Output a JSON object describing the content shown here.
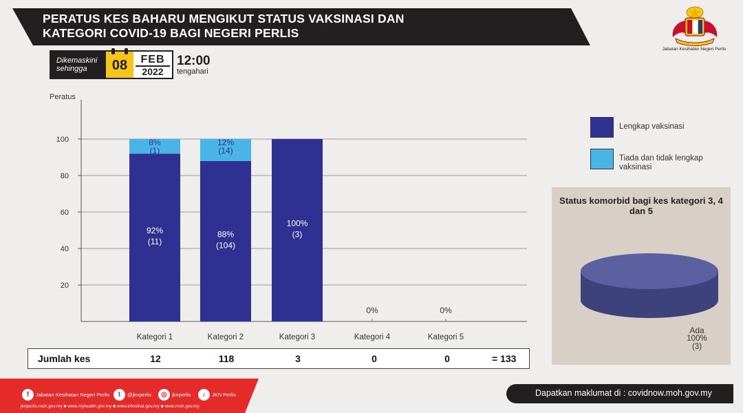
{
  "header": {
    "title_line1": "PERATUS KES BAHARU MENGIKUT STATUS VAKSINASI  DAN",
    "title_line2": "KATEGORI COVID-19 BAGI NEGERI PERLIS"
  },
  "logo": {
    "caption": "Jabatan Kesihatan Negeri Perlis"
  },
  "update": {
    "label_line1": "Dikemaskini",
    "label_line2": "sehingga",
    "day": "08",
    "month": "FEB",
    "year": "2022",
    "time": "12:00",
    "time_suffix": "tengahari"
  },
  "chart_data": {
    "type": "bar",
    "stacked": true,
    "ylabel": "Peratus",
    "ylim": [
      0,
      100
    ],
    "yticks": [
      "20",
      "40",
      "60",
      "80",
      "100"
    ],
    "categories": [
      "Kategori 1",
      "Kategori 2",
      "Kategori 3",
      "Kategori 4",
      "Kategori 5"
    ],
    "series": [
      {
        "name": "Lengkap vaksinasi",
        "color": "#2e3192",
        "values": [
          92,
          88,
          100,
          0,
          0
        ],
        "labels": [
          "92%",
          "88%",
          "100%",
          "",
          ""
        ],
        "counts": [
          "(11)",
          "(104)",
          "(3)",
          "",
          ""
        ]
      },
      {
        "name": "Tiada dan tidak lengkap vaksinasi",
        "color": "#49b4e6",
        "values": [
          8,
          12,
          0,
          0,
          0
        ],
        "labels": [
          "8%",
          "12%",
          "",
          "",
          ""
        ],
        "counts": [
          "(1)",
          "(14)",
          "",
          "",
          ""
        ]
      }
    ],
    "zero_labels": [
      "",
      "",
      "",
      "0%",
      "0%"
    ],
    "grid": true
  },
  "legend": {
    "items": [
      {
        "label": "Lengkap vaksinasi",
        "color": "#2e3192"
      },
      {
        "label": "Tiada dan tidak lengkap vaksinasi",
        "color": "#49b4e6"
      }
    ]
  },
  "totals": {
    "label": "Jumlah kes",
    "values": [
      "12",
      "118",
      "3",
      "0",
      "0"
    ],
    "sum": "= 133"
  },
  "comorbid": {
    "title": "Status komorbid bagi kes kategori 3, 4 dan 5",
    "slices": [
      {
        "name": "Ada",
        "value": 100,
        "label": "100%",
        "count": "(3)",
        "color": "#4a4f8f"
      }
    ]
  },
  "footer": {
    "socials": [
      {
        "icon": "facebook-icon",
        "glyph": "f",
        "text": "Jabatan Kesihatan Negeri Perlis"
      },
      {
        "icon": "twitter-icon",
        "glyph": "t",
        "text": "@jknperlis"
      },
      {
        "icon": "instagram-icon",
        "glyph": "◎",
        "text": "jknperlis"
      },
      {
        "icon": "tiktok-icon",
        "glyph": "♪",
        "text": "JKN Perlis"
      }
    ],
    "links": "jknperlis.moh.gov.my ■ www.myhealth.gov.my ■ www.infosihat.gov.my ■ www.moh.gov.my",
    "info": "Dapatkan maklumat di : covidnow.moh.gov.my"
  }
}
